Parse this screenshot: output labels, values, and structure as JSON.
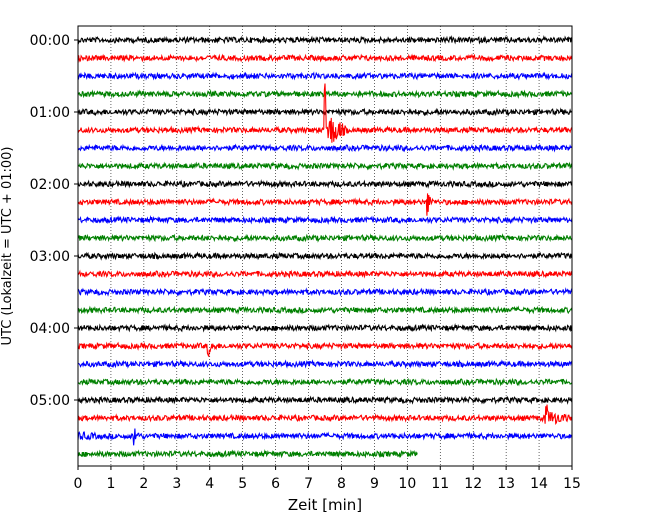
{
  "chart_data": {
    "type": "line",
    "title": "",
    "xlabel": "Zeit  [min]",
    "ylabel": "UTC (Lokalzeit = UTC + 01:00)",
    "xlim": [
      0,
      15
    ],
    "x_ticks": [
      "0",
      "1",
      "2",
      "3",
      "4",
      "5",
      "6",
      "7",
      "8",
      "9",
      "10",
      "11",
      "12",
      "13",
      "14",
      "15"
    ],
    "y_ticks": [
      "00:00",
      "01:00",
      "02:00",
      "03:00",
      "04:00",
      "05:00"
    ],
    "grid": "vertical dotted at each minute",
    "trace_interval_min": 15,
    "trace_colors": [
      "#000000",
      "#ff0000",
      "#0000ff",
      "#008000"
    ],
    "series": [
      {
        "start": "00:00",
        "color": "#000000",
        "end_min": 15
      },
      {
        "start": "00:15",
        "color": "#ff0000",
        "end_min": 15
      },
      {
        "start": "00:30",
        "color": "#0000ff",
        "end_min": 15
      },
      {
        "start": "00:45",
        "color": "#008000",
        "end_min": 15
      },
      {
        "start": "01:00",
        "color": "#000000",
        "end_min": 15
      },
      {
        "start": "01:15",
        "color": "#ff0000",
        "end_min": 15,
        "events": [
          {
            "t": 7.5,
            "amp": "large",
            "coda_min": 0.7
          }
        ]
      },
      {
        "start": "01:30",
        "color": "#0000ff",
        "end_min": 15
      },
      {
        "start": "01:45",
        "color": "#008000",
        "end_min": 15
      },
      {
        "start": "02:00",
        "color": "#000000",
        "end_min": 15
      },
      {
        "start": "02:15",
        "color": "#ff0000",
        "end_min": 15,
        "events": [
          {
            "t": 10.6,
            "amp": "medium",
            "coda_min": 0.2
          }
        ]
      },
      {
        "start": "02:30",
        "color": "#0000ff",
        "end_min": 15
      },
      {
        "start": "02:45",
        "color": "#008000",
        "end_min": 15
      },
      {
        "start": "03:00",
        "color": "#000000",
        "end_min": 15
      },
      {
        "start": "03:15",
        "color": "#ff0000",
        "end_min": 15
      },
      {
        "start": "03:30",
        "color": "#0000ff",
        "end_min": 15
      },
      {
        "start": "03:45",
        "color": "#008000",
        "end_min": 15
      },
      {
        "start": "04:00",
        "color": "#000000",
        "end_min": 15
      },
      {
        "start": "04:15",
        "color": "#ff0000",
        "end_min": 15,
        "events": [
          {
            "t": 3.95,
            "amp": "small",
            "coda_min": 0.3
          }
        ]
      },
      {
        "start": "04:30",
        "color": "#0000ff",
        "end_min": 15
      },
      {
        "start": "04:45",
        "color": "#008000",
        "end_min": 15
      },
      {
        "start": "05:00",
        "color": "#000000",
        "end_min": 15
      },
      {
        "start": "05:15",
        "color": "#ff0000",
        "end_min": 15,
        "events": [
          {
            "t": 14.2,
            "amp": "medium",
            "coda_min": 0.8
          }
        ]
      },
      {
        "start": "05:30",
        "color": "#0000ff",
        "end_min": 15,
        "events": [
          {
            "t": 1.7,
            "amp": "small",
            "coda_min": 0.2
          },
          {
            "t": 0.0,
            "amp": "noise",
            "coda_min": 0.8
          }
        ]
      },
      {
        "start": "05:45",
        "color": "#008000",
        "end_min": 10.3
      }
    ]
  }
}
